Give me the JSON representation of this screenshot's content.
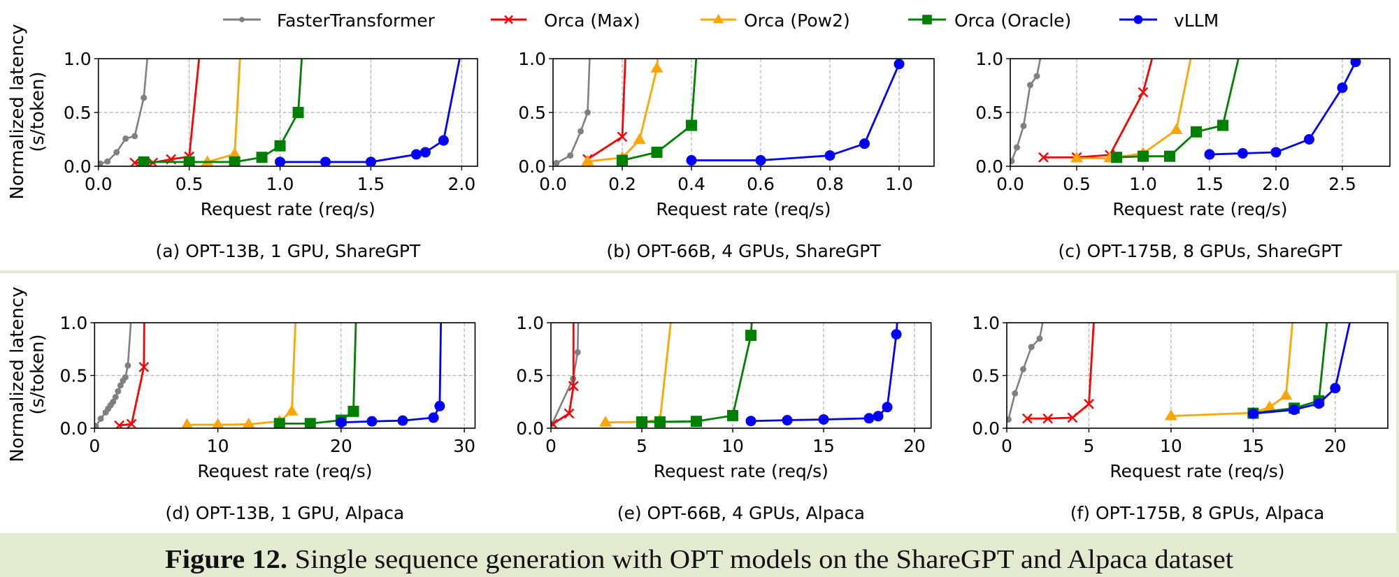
{
  "legend": {
    "items": [
      {
        "name": "FasterTransformer",
        "color": "#808080",
        "marker": "dot"
      },
      {
        "name": "Orca (Max)",
        "color": "#ff0000",
        "marker": "x"
      },
      {
        "name": "Orca (Pow2)",
        "color": "#ffa500",
        "marker": "triangle"
      },
      {
        "name": "Orca (Oracle)",
        "color": "#008000",
        "marker": "square"
      },
      {
        "name": "vLLM",
        "color": "#0000ff",
        "marker": "circle"
      }
    ]
  },
  "y_axis_label": {
    "line1": "Normalized latency",
    "line2": "(s/token)"
  },
  "figure_caption": {
    "label": "Figure 12.",
    "text": "Single sequence generation with OPT models on the ShareGPT and Alpaca dataset"
  },
  "colors": {
    "caption_bar": "#e2ebcf",
    "frame_border": "#e2ebd0"
  },
  "chart_data": [
    {
      "type": "line",
      "id": "a",
      "caption": "(a) OPT-13B, 1 GPU, ShareGPT",
      "xlabel": "Request rate (req/s)",
      "ylabel": "Normalized latency (s/token)",
      "xlim": [
        0,
        2.087
      ],
      "ylim": [
        0,
        1.0
      ],
      "grid": true,
      "xticks": [
        0,
        0.5,
        1.0,
        1.5,
        2.0
      ],
      "xtick_labels": [
        "0.0",
        "0.5",
        "1.0",
        "1.5",
        "2.0"
      ],
      "yticks": [
        0,
        0.5,
        1.0
      ],
      "ytick_labels": [
        "0.0",
        "0.5",
        "1.0"
      ],
      "series": [
        {
          "name": "FasterTransformer",
          "points": [
            [
              0.01,
              0.024
            ],
            [
              0.05,
              0.044
            ],
            [
              0.1,
              0.13
            ],
            [
              0.15,
              0.257
            ],
            [
              0.2,
              0.28
            ],
            [
              0.25,
              0.637
            ]
          ],
          "exits_top_at_x": 0.27
        },
        {
          "name": "Orca (Max)",
          "points": [
            [
              0.2,
              0.033
            ],
            [
              0.3,
              0.033
            ],
            [
              0.4,
              0.065
            ],
            [
              0.5,
              0.09
            ]
          ],
          "exits_top_at_x": 0.555
        },
        {
          "name": "Orca (Pow2)",
          "points": [
            [
              0.5,
              0.04
            ],
            [
              0.6,
              0.04
            ],
            [
              0.75,
              0.113
            ]
          ],
          "exits_top_at_x": 0.78
        },
        {
          "name": "Orca (Oracle)",
          "points": [
            [
              0.25,
              0.04
            ],
            [
              0.5,
              0.04
            ],
            [
              0.75,
              0.04
            ],
            [
              0.9,
              0.083
            ],
            [
              1.0,
              0.19
            ],
            [
              1.1,
              0.5
            ]
          ],
          "exits_top_at_x": 1.12
        },
        {
          "name": "vLLM",
          "points": [
            [
              1.0,
              0.04
            ],
            [
              1.25,
              0.04
            ],
            [
              1.5,
              0.04
            ],
            [
              1.75,
              0.11
            ],
            [
              1.8,
              0.13
            ],
            [
              1.9,
              0.24
            ]
          ],
          "exits_top_at_x": 1.99
        }
      ]
    },
    {
      "type": "line",
      "id": "b",
      "caption": "(b) OPT-66B, 4 GPUs, ShareGPT",
      "xlabel": "Request rate (req/s)",
      "ylabel": "Normalized latency (s/token)",
      "xlim": [
        0,
        1.101
      ],
      "ylim": [
        0,
        1.0
      ],
      "grid": true,
      "xticks": [
        0,
        0.2,
        0.4,
        0.6,
        0.8,
        1.0
      ],
      "xtick_labels": [
        "0.0",
        "0.2",
        "0.4",
        "0.6",
        "0.8",
        "1.0"
      ],
      "yticks": [
        0,
        0.5,
        1.0
      ],
      "ytick_labels": [
        "0.0",
        "0.5",
        "1.0"
      ],
      "series": [
        {
          "name": "FasterTransformer",
          "points": [
            [
              0.01,
              0.03
            ],
            [
              0.05,
              0.1
            ],
            [
              0.08,
              0.325
            ],
            [
              0.1,
              0.5
            ]
          ],
          "exits_top_at_x": 0.106
        },
        {
          "name": "Orca (Max)",
          "points": [
            [
              0.1,
              0.066
            ],
            [
              0.2,
              0.274
            ]
          ],
          "exits_top_at_x": 0.209
        },
        {
          "name": "Orca (Pow2)",
          "points": [
            [
              0.1,
              0.045
            ],
            [
              0.2,
              0.08
            ],
            [
              0.25,
              0.245
            ],
            [
              0.3,
              0.91
            ]
          ],
          "exits_top_at_x": 0.303
        },
        {
          "name": "Orca (Oracle)",
          "points": [
            [
              0.2,
              0.055
            ],
            [
              0.3,
              0.13
            ],
            [
              0.4,
              0.38
            ]
          ],
          "exits_top_at_x": 0.414
        },
        {
          "name": "vLLM",
          "points": [
            [
              0.4,
              0.055
            ],
            [
              0.6,
              0.055
            ],
            [
              0.8,
              0.1
            ],
            [
              0.9,
              0.21
            ],
            [
              1.0,
              0.95
            ]
          ],
          "exits_top_at_x": 1.005
        }
      ]
    },
    {
      "type": "line",
      "id": "c",
      "caption": "(c) OPT-175B, 8 GPUs, ShareGPT",
      "xlabel": "Request rate (req/s)",
      "ylabel": "Normalized latency (s/token)",
      "xlim": [
        0,
        2.858
      ],
      "ylim": [
        0,
        1.0
      ],
      "grid": true,
      "xticks": [
        0,
        0.5,
        1.0,
        1.5,
        2.0,
        2.5
      ],
      "xtick_labels": [
        "0.0",
        "0.5",
        "1.0",
        "1.5",
        "2.0",
        "2.5"
      ],
      "yticks": [
        0,
        0.5,
        1.0
      ],
      "ytick_labels": [
        "0.0",
        "0.5",
        "1.0"
      ],
      "series": [
        {
          "name": "FasterTransformer",
          "points": [
            [
              0.01,
              0.048
            ],
            [
              0.05,
              0.175
            ],
            [
              0.1,
              0.375
            ],
            [
              0.15,
              0.755
            ],
            [
              0.2,
              0.838
            ]
          ],
          "exits_top_at_x": 0.228
        },
        {
          "name": "Orca (Max)",
          "points": [
            [
              0.25,
              0.083
            ],
            [
              0.5,
              0.083
            ],
            [
              0.75,
              0.105
            ],
            [
              1.0,
              0.688
            ]
          ],
          "exits_top_at_x": 1.07
        },
        {
          "name": "Orca (Pow2)",
          "points": [
            [
              0.5,
              0.075
            ],
            [
              0.75,
              0.075
            ],
            [
              1.0,
              0.12
            ],
            [
              1.25,
              0.338
            ]
          ],
          "exits_top_at_x": 1.36
        },
        {
          "name": "Orca (Oracle)",
          "points": [
            [
              0.8,
              0.083
            ],
            [
              1.0,
              0.093
            ],
            [
              1.2,
              0.093
            ],
            [
              1.4,
              0.32
            ],
            [
              1.6,
              0.38
            ]
          ],
          "exits_top_at_x": 1.72
        },
        {
          "name": "vLLM",
          "points": [
            [
              1.5,
              0.11
            ],
            [
              1.75,
              0.12
            ],
            [
              2.0,
              0.13
            ],
            [
              2.25,
              0.25
            ],
            [
              2.5,
              0.73
            ],
            [
              2.6,
              0.97
            ]
          ],
          "exits_top_at_x": null
        }
      ]
    },
    {
      "type": "line",
      "id": "d",
      "caption": "(d) OPT-13B, 1 GPU, Alpaca",
      "xlabel": "Request rate (req/s)",
      "ylabel": "Normalized latency (s/token)",
      "xlim": [
        0,
        30.87
      ],
      "ylim": [
        0,
        1.0
      ],
      "grid": true,
      "xticks": [
        0,
        10,
        20,
        30
      ],
      "xtick_labels": [
        "0",
        "10",
        "20",
        "30"
      ],
      "yticks": [
        0,
        0.5,
        1.0
      ],
      "ytick_labels": [
        "0.0",
        "0.5",
        "1.0"
      ],
      "series": [
        {
          "name": "FasterTransformer",
          "points": [
            [
              0.1,
              0.02
            ],
            [
              0.5,
              0.09
            ],
            [
              0.9,
              0.15
            ],
            [
              1.1,
              0.185
            ],
            [
              1.3,
              0.218
            ],
            [
              1.5,
              0.25
            ],
            [
              1.7,
              0.295
            ],
            [
              1.9,
              0.35
            ],
            [
              2.1,
              0.405
            ],
            [
              2.3,
              0.45
            ],
            [
              2.5,
              0.483
            ],
            [
              2.7,
              0.594
            ]
          ],
          "exits_top_at_x": 2.95
        },
        {
          "name": "Orca (Max)",
          "points": [
            [
              2.0,
              0.026
            ],
            [
              3.0,
              0.04
            ],
            [
              4.0,
              0.58
            ]
          ],
          "exits_top_at_x": 4.03
        },
        {
          "name": "Orca (Pow2)",
          "points": [
            [
              7.5,
              0.033
            ],
            [
              10.0,
              0.033
            ],
            [
              12.5,
              0.037
            ],
            [
              15.0,
              0.065
            ],
            [
              16.0,
              0.16
            ]
          ],
          "exits_top_at_x": 16.3
        },
        {
          "name": "Orca (Oracle)",
          "points": [
            [
              15.0,
              0.044
            ],
            [
              17.5,
              0.044
            ],
            [
              20.0,
              0.076
            ],
            [
              21.0,
              0.16
            ]
          ],
          "exits_top_at_x": 21.2
        },
        {
          "name": "vLLM",
          "points": [
            [
              20.0,
              0.055
            ],
            [
              22.5,
              0.065
            ],
            [
              25.0,
              0.072
            ],
            [
              27.5,
              0.1
            ],
            [
              28.0,
              0.21
            ]
          ],
          "exits_top_at_x": 28.1
        }
      ]
    },
    {
      "type": "line",
      "id": "e",
      "caption": "(e) OPT-66B, 4 GPUs, Alpaca",
      "xlabel": "Request rate (req/s)",
      "ylabel": "Normalized latency (s/token)",
      "xlim": [
        0,
        20.91
      ],
      "ylim": [
        0,
        1.0
      ],
      "grid": true,
      "xticks": [
        0,
        5,
        10,
        15,
        20
      ],
      "xtick_labels": [
        "0",
        "5",
        "10",
        "15",
        "20"
      ],
      "yticks": [
        0,
        0.5,
        1.0
      ],
      "ytick_labels": [
        "0.0",
        "0.5",
        "1.0"
      ],
      "series": [
        {
          "name": "FasterTransformer",
          "points": [
            [
              0.06,
              0.04
            ],
            [
              1.22,
              0.47
            ],
            [
              1.47,
              0.72
            ]
          ],
          "exits_top_at_x": 1.5
        },
        {
          "name": "Orca (Max)",
          "points": [
            [
              0.1,
              0.04
            ],
            [
              1.0,
              0.14
            ],
            [
              1.24,
              0.4
            ]
          ],
          "exits_top_at_x": 1.24
        },
        {
          "name": "Orca (Pow2)",
          "points": [
            [
              3.0,
              0.055
            ],
            [
              5.0,
              0.06
            ],
            [
              6.0,
              0.08
            ]
          ],
          "exits_top_at_x": 6.6
        },
        {
          "name": "Orca (Oracle)",
          "points": [
            [
              5.0,
              0.06
            ],
            [
              6.0,
              0.06
            ],
            [
              8.0,
              0.065
            ],
            [
              10.0,
              0.12
            ],
            [
              11.0,
              0.88
            ]
          ],
          "exits_top_at_x": 11.05
        },
        {
          "name": "vLLM",
          "points": [
            [
              11.0,
              0.068
            ],
            [
              13.0,
              0.076
            ],
            [
              15.0,
              0.083
            ],
            [
              17.5,
              0.094
            ],
            [
              18.0,
              0.114
            ],
            [
              18.5,
              0.2
            ],
            [
              19.0,
              0.89
            ]
          ],
          "exits_top_at_x": 19.05
        }
      ]
    },
    {
      "type": "line",
      "id": "f",
      "caption": "(f) OPT-175B, 8 GPUs, Alpaca",
      "xlabel": "Request rate (req/s)",
      "ylabel": "Normalized latency (s/token)",
      "xlim": [
        0,
        23.2
      ],
      "ylim": [
        0,
        1.0
      ],
      "grid": true,
      "xticks": [
        0,
        5,
        10,
        15,
        20
      ],
      "xtick_labels": [
        "0",
        "5",
        "10",
        "15",
        "20"
      ],
      "yticks": [
        0,
        0.5,
        1.0
      ],
      "ytick_labels": [
        "0.0",
        "0.5",
        "1.0"
      ],
      "series": [
        {
          "name": "FasterTransformer",
          "points": [
            [
              0.1,
              0.083
            ],
            [
              0.5,
              0.33
            ],
            [
              1.0,
              0.56
            ],
            [
              1.5,
              0.77
            ],
            [
              2.0,
              0.85
            ]
          ],
          "exits_top_at_x": 2.2
        },
        {
          "name": "Orca (Max)",
          "points": [
            [
              1.25,
              0.092
            ],
            [
              2.5,
              0.092
            ],
            [
              4.0,
              0.1
            ],
            [
              5.0,
              0.23
            ]
          ],
          "exits_top_at_x": 5.3
        },
        {
          "name": "Orca (Pow2)",
          "points": [
            [
              10.0,
              0.116
            ],
            [
              15.0,
              0.146
            ],
            [
              16.0,
              0.2
            ],
            [
              17.0,
              0.31
            ]
          ],
          "exits_top_at_x": 17.4
        },
        {
          "name": "Orca (Oracle)",
          "points": [
            [
              15.0,
              0.142
            ],
            [
              17.5,
              0.19
            ],
            [
              19.0,
              0.26
            ]
          ],
          "exits_top_at_x": 19.5
        },
        {
          "name": "vLLM",
          "points": [
            [
              15.0,
              0.138
            ],
            [
              17.5,
              0.175
            ],
            [
              19.0,
              0.234
            ],
            [
              20.0,
              0.38
            ]
          ],
          "exits_top_at_x": 20.9
        }
      ]
    }
  ]
}
